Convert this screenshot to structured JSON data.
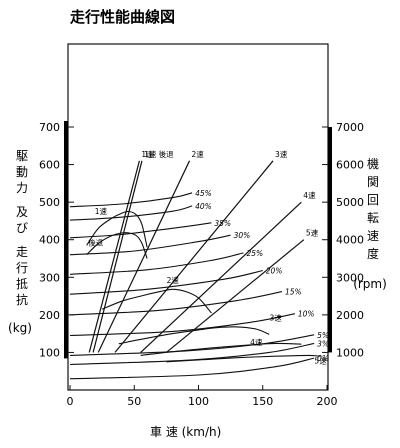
{
  "chart_data": {
    "type": "line",
    "title": "走行性能曲線図",
    "xlabel": "車 速 (km/h)",
    "xlim": [
      0,
      200
    ],
    "x_ticks": [
      "0",
      "50",
      "100",
      "150",
      "200"
    ],
    "ylabel_left": [
      "駆",
      "動",
      "力",
      "及",
      "び",
      "走",
      "行",
      "抵",
      "抗",
      "(kg)"
    ],
    "ylim": [
      0,
      700
    ],
    "y_ticks": [
      "100",
      "200",
      "300",
      "400",
      "500",
      "600",
      "700"
    ],
    "ylabel_right": [
      "機",
      "関",
      "回",
      "転",
      "速",
      "度",
      "(rpm)"
    ],
    "y2lim": [
      0,
      7000
    ],
    "y2_ticks": [
      "1000",
      "2000",
      "3000",
      "4000",
      "5000",
      "6000",
      "7000"
    ],
    "engine_speed_lines": [
      {
        "name": "1速",
        "x": [
          15,
          54
        ],
        "y": [
          1000,
          6100
        ]
      },
      {
        "name": "1速 後退",
        "x": [
          18,
          56
        ],
        "y": [
          1000,
          6100
        ]
      },
      {
        "name": "2速",
        "x": [
          22,
          93
        ],
        "y": [
          1000,
          6100
        ]
      },
      {
        "name": "3速",
        "x": [
          35,
          158
        ],
        "y": [
          1000,
          6100
        ]
      },
      {
        "name": "4速",
        "x": [
          55,
          180
        ],
        "y": [
          1000,
          5000
        ]
      },
      {
        "name": "5速",
        "x": [
          75,
          182
        ],
        "y": [
          1000,
          4000
        ]
      }
    ],
    "driving_force_curves": [
      {
        "name": "1速",
        "x": [
          13,
          22,
          32,
          40,
          46,
          52,
          56,
          60
        ],
        "y": [
          385,
          430,
          456,
          470,
          475,
          465,
          440,
          380
        ]
      },
      {
        "name": "後退",
        "x": [
          13,
          22,
          32,
          40,
          46,
          52,
          56,
          60
        ],
        "y": [
          360,
          390,
          410,
          418,
          418,
          410,
          390,
          350
        ]
      },
      {
        "name": "2速",
        "x": [
          25,
          40,
          55,
          70,
          80,
          90,
          100,
          110
        ],
        "y": [
          215,
          236,
          250,
          262,
          268,
          262,
          245,
          205
        ]
      },
      {
        "name": "3速",
        "x": [
          38,
          60,
          80,
          100,
          115,
          130,
          145,
          155
        ],
        "y": [
          123,
          138,
          150,
          160,
          166,
          168,
          162,
          148
        ]
      },
      {
        "name": "4速",
        "x": [
          55,
          80,
          110,
          140,
          160,
          180
        ],
        "y": [
          92,
          102,
          112,
          120,
          124,
          122
        ]
      },
      {
        "name": "5速",
        "x": [
          75,
          100,
          130,
          160,
          185,
          195
        ],
        "y": [
          75,
          80,
          86,
          90,
          92,
          90
        ]
      }
    ],
    "running_resistance_curves": [
      {
        "name": "45%",
        "x": [
          0,
          40,
          80,
          95
        ],
        "y": [
          488,
          495,
          512,
          525
        ]
      },
      {
        "name": "40%",
        "x": [
          0,
          40,
          80,
          95
        ],
        "y": [
          452,
          460,
          476,
          490
        ]
      },
      {
        "name": "35%",
        "x": [
          0,
          40,
          90,
          110
        ],
        "y": [
          405,
          414,
          435,
          445
        ]
      },
      {
        "name": "30%",
        "x": [
          0,
          50,
          100,
          125
        ],
        "y": [
          360,
          370,
          395,
          412
        ]
      },
      {
        "name": "25%",
        "x": [
          0,
          60,
          110,
          135
        ],
        "y": [
          308,
          320,
          345,
          365
        ]
      },
      {
        "name": "20%",
        "x": [
          0,
          60,
          120,
          150
        ],
        "y": [
          255,
          268,
          295,
          318
        ]
      },
      {
        "name": "15%",
        "x": [
          0,
          70,
          130,
          165
        ],
        "y": [
          200,
          212,
          238,
          262
        ]
      },
      {
        "name": "10%",
        "x": [
          0,
          80,
          140,
          175
        ],
        "y": [
          145,
          156,
          180,
          203
        ]
      },
      {
        "name": "5%",
        "x": [
          0,
          90,
          150,
          190
        ],
        "y": [
          92,
          104,
          123,
          147
        ]
      },
      {
        "name": "3%",
        "x": [
          0,
          95,
          155,
          190
        ],
        "y": [
          68,
          80,
          100,
          124
        ]
      },
      {
        "name": "0%",
        "x": [
          0,
          100,
          160,
          190
        ],
        "y": [
          30,
          40,
          62,
          85
        ]
      }
    ],
    "annotations": [
      "1速",
      "後退",
      "2速",
      "3速",
      "4速",
      "5速",
      "1速 後退"
    ]
  }
}
